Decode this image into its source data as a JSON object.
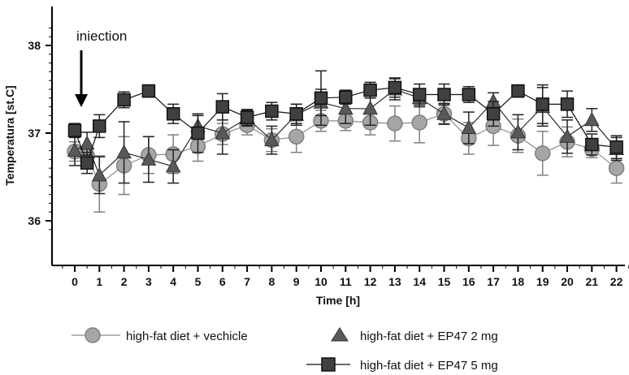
{
  "chart_data": {
    "type": "line",
    "title": "",
    "xlabel": "Time [h]",
    "ylabel": "Temperatura [st.C]",
    "xlim": [
      -0.5,
      22.5
    ],
    "ylim": [
      35.8,
      38.3
    ],
    "x_ticks": [
      "0",
      "1",
      "2",
      "3",
      "4",
      "5",
      "6",
      "7",
      "8",
      "9",
      "10",
      "11",
      "12",
      "13",
      "14",
      "15",
      "16",
      "17",
      "18",
      "19",
      "20",
      "21",
      "22"
    ],
    "y_ticks": [
      "36",
      "37",
      "38"
    ],
    "grid": false,
    "legend_position": "bottom",
    "annotation": {
      "text": "iniection",
      "x": 0.3
    },
    "series": [
      {
        "name": "high-fat diet + vechicle",
        "marker": "circle",
        "fill": "#a6a6a6",
        "stroke": "#7f7f7f",
        "line": "#8c8c8c",
        "x": [
          0,
          0.5,
          1,
          2,
          3,
          4,
          5,
          6,
          7,
          8,
          9,
          10,
          11,
          12,
          13,
          14,
          15,
          16,
          17,
          18,
          19,
          20,
          21,
          22
        ],
        "y": [
          36.79,
          36.74,
          36.42,
          36.63,
          36.75,
          36.76,
          36.85,
          36.99,
          37.09,
          36.92,
          36.96,
          37.14,
          37.14,
          37.12,
          37.11,
          37.12,
          37.22,
          36.94,
          37.08,
          36.97,
          36.77,
          36.9,
          36.82,
          36.6
        ],
        "err": [
          0.11,
          0.09,
          0.32,
          0.33,
          0.21,
          0.22,
          0.17,
          0.12,
          0.11,
          0.13,
          0.18,
          0.12,
          0.11,
          0.14,
          0.2,
          0.23,
          0.11,
          0.18,
          0.22,
          0.19,
          0.25,
          0.17,
          0.1,
          0.17
        ]
      },
      {
        "name": "high-fat diet + EP47 2 mg",
        "marker": "triangle",
        "fill": "#595959",
        "stroke": "#333333",
        "line": "#2b2b2b",
        "x": [
          0,
          0.5,
          1,
          2,
          3,
          4,
          5,
          6,
          7,
          8,
          9,
          10,
          11,
          12,
          13,
          14,
          15,
          16,
          17,
          18,
          19,
          20,
          21,
          22
        ],
        "y": [
          36.8,
          36.88,
          36.52,
          36.78,
          36.7,
          36.62,
          37.08,
          37.0,
          37.17,
          36.92,
          37.21,
          37.35,
          37.28,
          37.28,
          37.5,
          37.4,
          37.22,
          37.06,
          37.36,
          37.01,
          37.3,
          36.96,
          37.15,
          36.82
        ],
        "err": [
          0.17,
          0.13,
          0.21,
          0.35,
          0.26,
          0.19,
          0.12,
          0.24,
          0.09,
          0.16,
          0.12,
          0.15,
          0.17,
          0.19,
          0.12,
          0.1,
          0.12,
          0.18,
          0.1,
          0.2,
          0.22,
          0.19,
          0.13,
          0.13
        ]
      },
      {
        "name": "high-fat diet + EP47 5 mg",
        "marker": "square",
        "fill": "#404040",
        "stroke": "#111111",
        "line": "#111111",
        "x": [
          0,
          0.5,
          1,
          2,
          3,
          4,
          5,
          6,
          7,
          8,
          9,
          10,
          11,
          12,
          13,
          14,
          15,
          16,
          17,
          18,
          19,
          20,
          21,
          22
        ],
        "y": [
          37.03,
          36.66,
          37.08,
          37.38,
          37.48,
          37.22,
          37.0,
          37.3,
          37.18,
          37.25,
          37.22,
          37.4,
          37.41,
          37.49,
          37.52,
          37.44,
          37.44,
          37.44,
          37.22,
          37.48,
          37.33,
          37.33,
          36.87,
          36.84
        ],
        "err": [
          0.08,
          0.12,
          0.13,
          0.09,
          0.07,
          0.11,
          0.22,
          0.15,
          0.09,
          0.1,
          0.11,
          0.31,
          0.08,
          0.09,
          0.11,
          0.12,
          0.12,
          0.09,
          0.14,
          0.07,
          0.22,
          0.15,
          0.12,
          0.13
        ]
      }
    ]
  }
}
